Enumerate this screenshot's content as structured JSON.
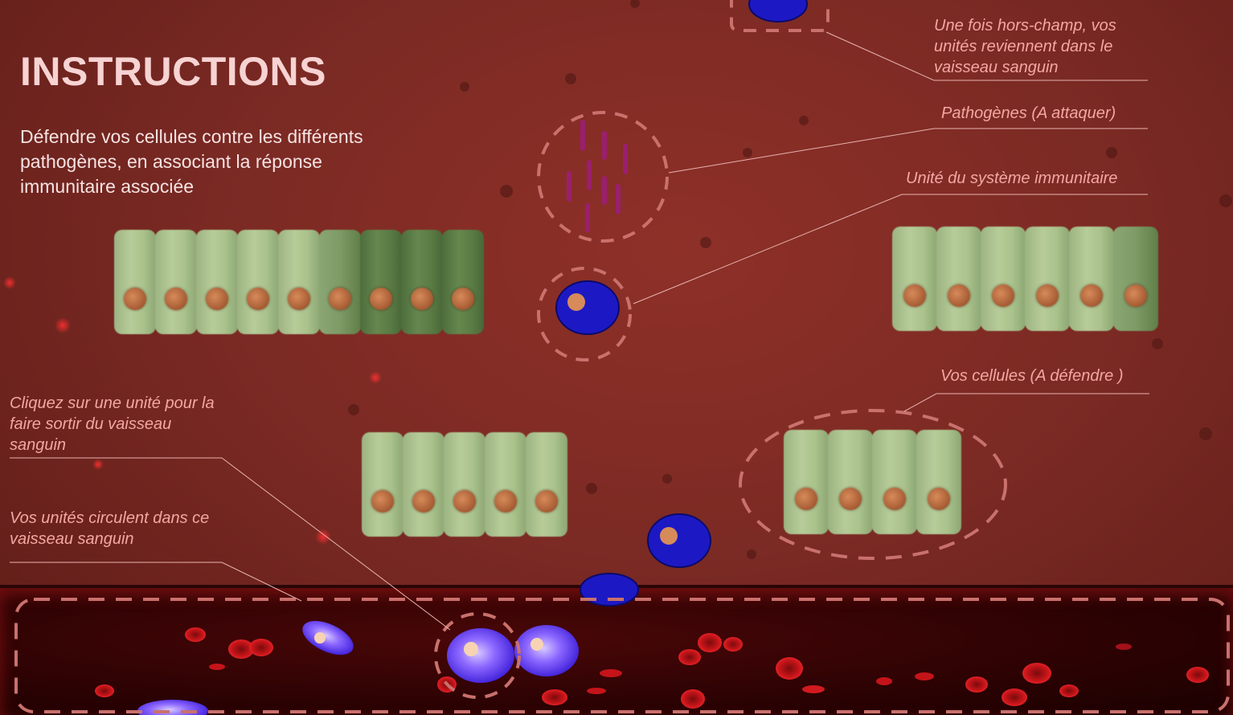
{
  "instructions": {
    "title": "INSTRUCTIONS",
    "description": "Défendre vos cellules contre les différents pathogènes, en associant la réponse immunitaire associée"
  },
  "annotations": {
    "offscreen_units": "Une fois hors-champ, vos unités reviennent dans le vaisseau sanguin",
    "pathogens": "Pathogènes (A attaquer)",
    "immune_unit": "Unité du système immunitaire",
    "your_cells": "Vos cellules (A défendre )",
    "click_unit": "Cliquez sur une unité pour la faire sortir du vaisseau sanguin",
    "units_circulate": "Vos unités circulent dans ce vaisseau sanguin"
  },
  "colors": {
    "background": "#7c2a24",
    "annotation_text": "#f3a7a2",
    "dashed_outline": "#c9716d",
    "immune_unit": "#1c19c4",
    "pathogen": "#9a1f6e",
    "tissue_cell": "#b7cc99"
  }
}
